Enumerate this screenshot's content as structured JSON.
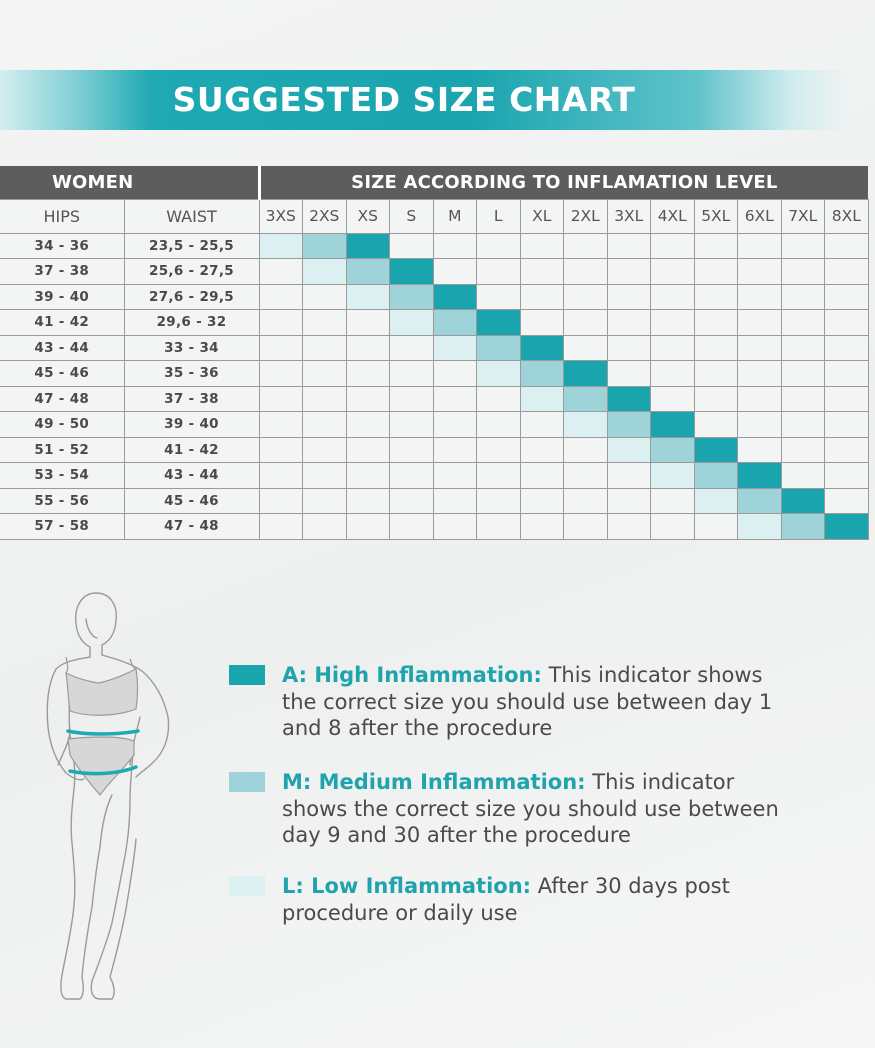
{
  "title": "SUGGESTED SIZE CHART",
  "table": {
    "women_header": "WOMEN",
    "inflammation_header": "SIZE ACCORDING TO INFLAMATION LEVEL",
    "hips_header": "HIPS",
    "waist_header": "WAIST",
    "sizes": [
      "3XS",
      "2XS",
      "XS",
      "S",
      "M",
      "L",
      "XL",
      "2XL",
      "3XL",
      "4XL",
      "5XL",
      "6XL",
      "7XL",
      "8XL"
    ],
    "rows": [
      {
        "hips": "34 - 36",
        "waist": "23,5 - 25,5",
        "levels": [
          "L",
          "M",
          "A",
          "",
          "",
          "",
          "",
          "",
          "",
          "",
          "",
          "",
          "",
          ""
        ]
      },
      {
        "hips": "37 - 38",
        "waist": "25,6 - 27,5",
        "levels": [
          "",
          "L",
          "M",
          "A",
          "",
          "",
          "",
          "",
          "",
          "",
          "",
          "",
          "",
          ""
        ]
      },
      {
        "hips": "39 - 40",
        "waist": "27,6 - 29,5",
        "levels": [
          "",
          "",
          "L",
          "M",
          "A",
          "",
          "",
          "",
          "",
          "",
          "",
          "",
          "",
          ""
        ]
      },
      {
        "hips": "41 - 42",
        "waist": "29,6 - 32",
        "levels": [
          "",
          "",
          "",
          "L",
          "M",
          "A",
          "",
          "",
          "",
          "",
          "",
          "",
          "",
          ""
        ]
      },
      {
        "hips": "43 - 44",
        "waist": "33 - 34",
        "levels": [
          "",
          "",
          "",
          "",
          "L",
          "M",
          "A",
          "",
          "",
          "",
          "",
          "",
          "",
          ""
        ]
      },
      {
        "hips": "45 - 46",
        "waist": "35 - 36",
        "levels": [
          "",
          "",
          "",
          "",
          "",
          "L",
          "M",
          "A",
          "",
          "",
          "",
          "",
          "",
          ""
        ]
      },
      {
        "hips": "47 - 48",
        "waist": "37 - 38",
        "levels": [
          "",
          "",
          "",
          "",
          "",
          "",
          "L",
          "M",
          "A",
          "",
          "",
          "",
          "",
          ""
        ]
      },
      {
        "hips": "49 - 50",
        "waist": "39 - 40",
        "levels": [
          "",
          "",
          "",
          "",
          "",
          "",
          "",
          "L",
          "M",
          "A",
          "",
          "",
          "",
          ""
        ]
      },
      {
        "hips": "51 - 52",
        "waist": "41 - 42",
        "levels": [
          "",
          "",
          "",
          "",
          "",
          "",
          "",
          "",
          "L",
          "M",
          "A",
          "",
          "",
          ""
        ]
      },
      {
        "hips": "53 - 54",
        "waist": "43 - 44",
        "levels": [
          "",
          "",
          "",
          "",
          "",
          "",
          "",
          "",
          "",
          "L",
          "M",
          "A",
          "",
          ""
        ]
      },
      {
        "hips": "55 - 56",
        "waist": "45 - 46",
        "levels": [
          "",
          "",
          "",
          "",
          "",
          "",
          "",
          "",
          "",
          "",
          "L",
          "M",
          "A",
          ""
        ]
      },
      {
        "hips": "57 - 58",
        "waist": "47 - 48",
        "levels": [
          "",
          "",
          "",
          "",
          "",
          "",
          "",
          "",
          "",
          "",
          "",
          "L",
          "M",
          "A"
        ]
      }
    ]
  },
  "colors": {
    "high": "#19a4ae",
    "medium": "#9fd3da",
    "low": "#dcf0f1",
    "header_bg": "#5d5d5d"
  },
  "legend": [
    {
      "level": "A",
      "label": "A: High Inflammation:",
      "text": "This indicator shows the correct size you should use between day 1 and 8 after the procedure"
    },
    {
      "level": "M",
      "label": "M: Medium Inflammation:",
      "text": "This indicator shows the correct size you should use between day 9 and 30 after the procedure"
    },
    {
      "level": "L",
      "label": "L: Low Inflammation:",
      "text": "After 30 days post procedure or daily use"
    }
  ]
}
